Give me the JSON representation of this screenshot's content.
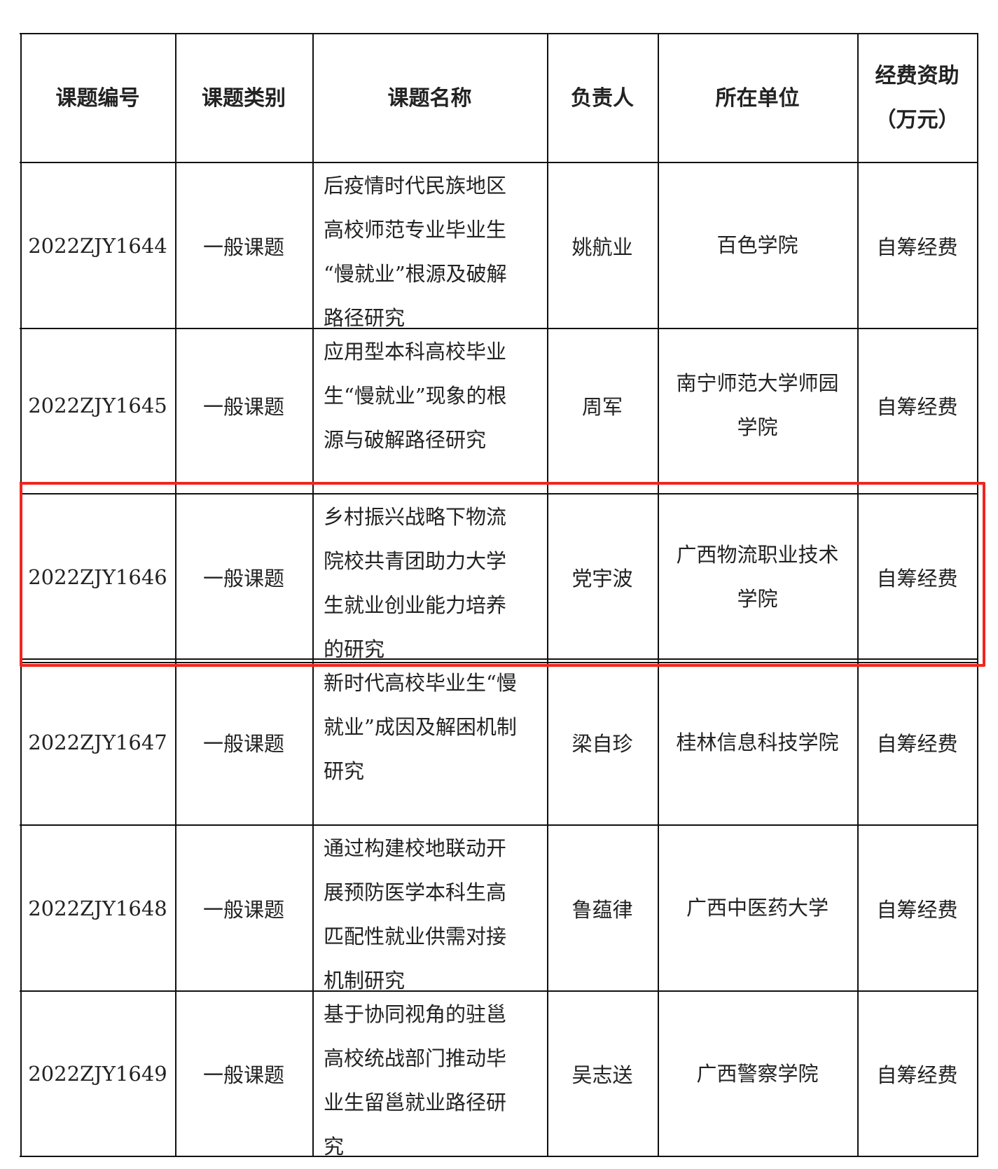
{
  "headers": [
    "课题编号",
    "课题类别",
    "课题名称",
    "负责人",
    "所在单位",
    "经费资助\n（万元）"
  ],
  "rows": [
    {
      "id": "2022ZJY1644",
      "category": "一般课题",
      "title": "后疫情时代民族地区\n高校师范专业毕业生\n“慢就业”根源及破解\n路径研究",
      "leader": "姚航业",
      "unit": "百色学院",
      "funding": "自筹经费"
    },
    {
      "id": "2022ZJY1645",
      "category": "一般课题",
      "title": "应用型本科高校毕业\n生“慢就业”现象的根\n源与破解路径研究",
      "leader": "周军",
      "unit": "南宁师范大学师园\n学院",
      "funding": "自筹经费"
    },
    {
      "id": "2022ZJY1646",
      "category": "一般课题",
      "title": "乡村振兴战略下物流\n院校共青团助力大学\n生就业创业能力培养\n的研究",
      "leader": "党宇波",
      "unit": "广西物流职业技术\n学院",
      "funding": "自筹经费"
    },
    {
      "id": "2022ZJY1647",
      "category": "一般课题",
      "title": "新时代高校毕业生“慢\n就业”成因及解困机制\n研究",
      "leader": "梁自珍",
      "unit": "桂林信息科技学院",
      "funding": "自筹经费"
    },
    {
      "id": "2022ZJY1648",
      "category": "一般课题",
      "title": "通过构建校地联动开\n展预防医学本科生高\n匹配性就业供需对接\n机制研究",
      "leader": "鲁蕴律",
      "unit": "广西中医药大学",
      "funding": "自筹经费"
    },
    {
      "id": "2022ZJY1649",
      "category": "一般课题",
      "title": "基于协同视角的驻邕\n高校统战部门推动毕\n业生留邕就业路径研\n究",
      "leader": "吴志送",
      "unit": "广西警察学院",
      "funding": "自筹经费"
    }
  ],
  "highlight": {
    "row_index": 2,
    "color": "#f0261e"
  }
}
